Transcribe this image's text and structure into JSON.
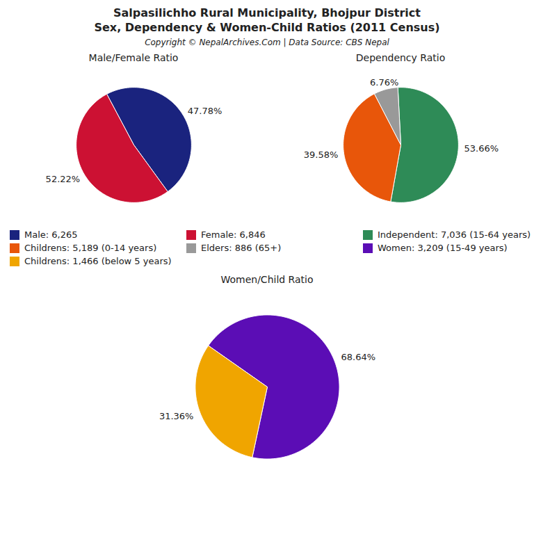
{
  "title": "Salpasilichho Rural Municipality, Bhojpur District",
  "subtitle": "Sex, Dependency & Women-Child Ratios (2011 Census)",
  "annotations": [
    "Copyright © NepalArchives.Com | Data Source: CBS Nepal"
  ],
  "legend": "center",
  "chart_data": [
    {
      "type": "pie",
      "title": "Male/Female Ratio",
      "categories": [
        "Male: 6,265",
        "Female: 6,846"
      ],
      "values": [
        47.78,
        52.22
      ],
      "value_labels": [
        "47.78%",
        "52.22%"
      ],
      "colors": [
        "#1a237e",
        "#cc1133"
      ],
      "data_labels": true
    },
    {
      "type": "pie",
      "title": "Dependency Ratio",
      "categories": [
        "Independent: 7,036 (15-64 years)",
        "Childrens: 5,189 (0-14 years)",
        "Elders: 886 (65+)"
      ],
      "values": [
        53.66,
        39.58,
        6.76
      ],
      "value_labels": [
        "53.66%",
        "39.58%",
        "6.76%"
      ],
      "colors": [
        "#2e8b57",
        "#e8560a",
        "#999999"
      ],
      "data_labels": true
    },
    {
      "type": "pie",
      "title": "Women/Child Ratio",
      "categories": [
        "Women: 3,209 (15-49 years)",
        "Childrens: 1,466 (below 5 years)"
      ],
      "values": [
        68.64,
        31.36
      ],
      "value_labels": [
        "68.64%",
        "31.36%"
      ],
      "colors": [
        "#5b0db5",
        "#f0a500"
      ],
      "data_labels": true
    }
  ]
}
